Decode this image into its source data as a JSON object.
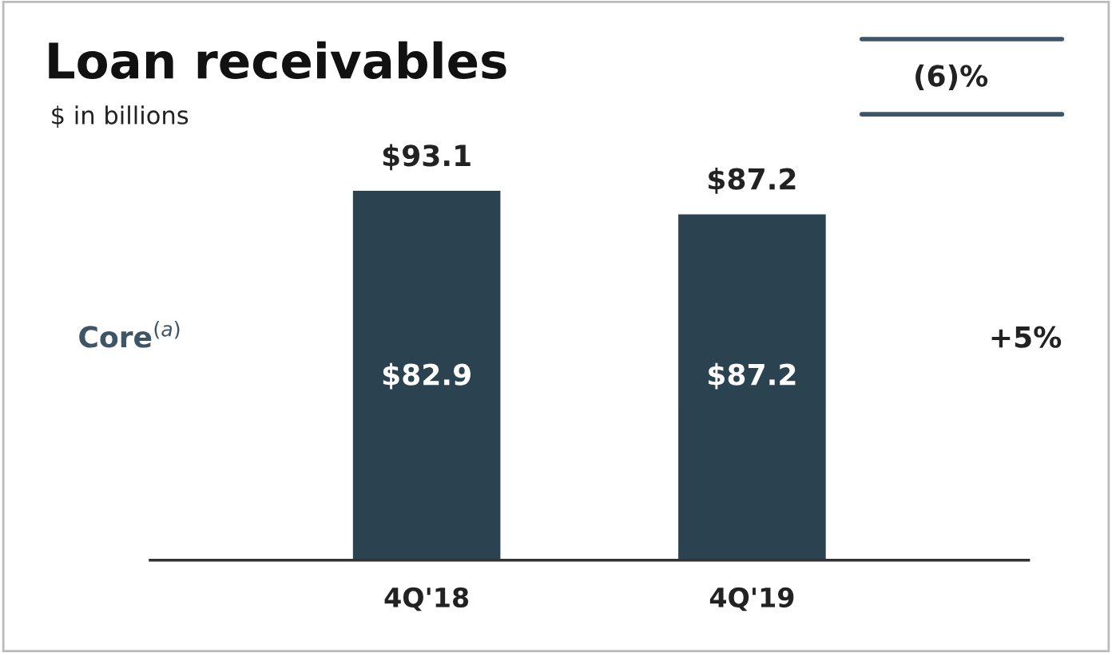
{
  "chart_data": {
    "type": "bar",
    "title": "Loan receivables",
    "subtitle": "$ in billions",
    "categories": [
      "4Q'18",
      "4Q'19"
    ],
    "values": [
      93.1,
      87.2
    ],
    "color": "#2b4251",
    "value_labels": [
      "$93.1",
      "$87.2"
    ],
    "annotations": [
      "$82.9",
      "$87.2",
      "Core$^{(a)}$",
      "+5%",
      "(6)%"
    ],
    "tick_labels": "x",
    "grid": false,
    "legend": false
  }
}
